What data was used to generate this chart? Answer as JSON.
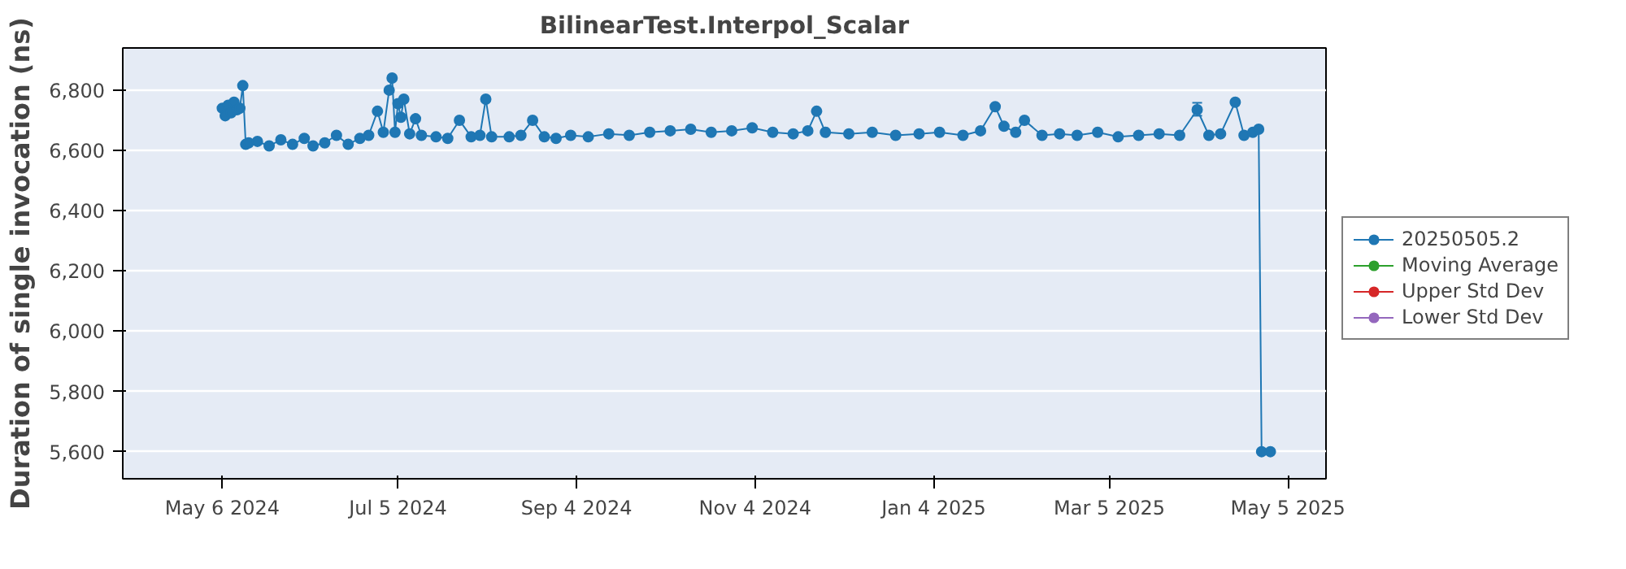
{
  "chart_data": {
    "type": "line",
    "title": "BilinearTest.Interpol_Scalar",
    "ylabel": "Duration of single invocation (ns)",
    "x": [
      "2024-05-06",
      "2024-05-07",
      "2024-05-08",
      "2024-05-09",
      "2024-05-10",
      "2024-05-11",
      "2024-05-12",
      "2024-05-13",
      "2024-05-14",
      "2024-05-15",
      "2024-05-18",
      "2024-05-22",
      "2024-05-26",
      "2024-05-30",
      "2024-06-03",
      "2024-06-06",
      "2024-06-10",
      "2024-06-14",
      "2024-06-18",
      "2024-06-22",
      "2024-06-25",
      "2024-06-28",
      "2024-06-30",
      "2024-07-02",
      "2024-07-03",
      "2024-07-04",
      "2024-07-05",
      "2024-07-06",
      "2024-07-07",
      "2024-07-09",
      "2024-07-11",
      "2024-07-13",
      "2024-07-18",
      "2024-07-22",
      "2024-07-26",
      "2024-07-30",
      "2024-08-02",
      "2024-08-04",
      "2024-08-06",
      "2024-08-12",
      "2024-08-16",
      "2024-08-20",
      "2024-08-24",
      "2024-08-28",
      "2024-09-02",
      "2024-09-08",
      "2024-09-15",
      "2024-09-22",
      "2024-09-29",
      "2024-10-06",
      "2024-10-13",
      "2024-10-20",
      "2024-10-27",
      "2024-11-03",
      "2024-11-10",
      "2024-11-17",
      "2024-11-22",
      "2024-11-25",
      "2024-11-28",
      "2024-12-06",
      "2024-12-14",
      "2024-12-22",
      "2024-12-30",
      "2025-01-06",
      "2025-01-14",
      "2025-01-20",
      "2025-01-25",
      "2025-01-28",
      "2025-02-01",
      "2025-02-04",
      "2025-02-10",
      "2025-02-16",
      "2025-02-22",
      "2025-03-01",
      "2025-03-08",
      "2025-03-15",
      "2025-03-22",
      "2025-03-29",
      "2025-04-04",
      "2025-04-08",
      "2025-04-12",
      "2025-04-17",
      "2025-04-20",
      "2025-04-23",
      "2025-04-25",
      "2025-04-26",
      "2025-04-29"
    ],
    "xlim": [
      "2024-04-02",
      "2025-05-18"
    ],
    "xticks": [
      {
        "value": "2024-05-06",
        "label": "May 6 2024"
      },
      {
        "value": "2024-07-05",
        "label": "Jul 5 2024"
      },
      {
        "value": "2024-09-04",
        "label": "Sep 4 2024"
      },
      {
        "value": "2024-11-04",
        "label": "Nov 4 2024"
      },
      {
        "value": "2025-01-04",
        "label": "Jan 4 2025"
      },
      {
        "value": "2025-03-05",
        "label": "Mar 5 2025"
      },
      {
        "value": "2025-05-05",
        "label": "May 5 2025"
      }
    ],
    "ylim": [
      5510,
      6940
    ],
    "yticks": [
      {
        "value": 5600,
        "label": "5,600"
      },
      {
        "value": 5800,
        "label": "5,800"
      },
      {
        "value": 6000,
        "label": "6,000"
      },
      {
        "value": 6200,
        "label": "6,200"
      },
      {
        "value": 6400,
        "label": "6,400"
      },
      {
        "value": 6600,
        "label": "6,600"
      },
      {
        "value": 6800,
        "label": "6,800"
      }
    ],
    "grid": true,
    "legend": "right",
    "marker": "circle",
    "series": [
      {
        "name": "20250505.2",
        "color": "#1f77b4",
        "values": [
          6740,
          6715,
          6750,
          6725,
          6760,
          6735,
          6740,
          6815,
          6620,
          6625,
          6630,
          6615,
          6635,
          6620,
          6640,
          6615,
          6625,
          6650,
          6620,
          6640,
          6650,
          6730,
          6660,
          6800,
          6840,
          6660,
          6755,
          6710,
          6770,
          6655,
          6705,
          6650,
          6645,
          6640,
          6700,
          6645,
          6650,
          6770,
          6645,
          6645,
          6650,
          6700,
          6645,
          6640,
          6650,
          6645,
          6655,
          6650,
          6660,
          6665,
          6670,
          6660,
          6665,
          6675,
          6660,
          6655,
          6665,
          6730,
          6660,
          6655,
          6660,
          6650,
          6655,
          6660,
          6650,
          6665,
          6745,
          6680,
          6660,
          6700,
          6650,
          6655,
          6650,
          6660,
          6645,
          6650,
          6655,
          6650,
          6735,
          6650,
          6655,
          6760,
          6650,
          6660,
          6670,
          5600,
          5600
        ],
        "errors": [
          null,
          null,
          null,
          null,
          null,
          null,
          null,
          null,
          null,
          null,
          null,
          null,
          null,
          null,
          null,
          null,
          null,
          null,
          null,
          null,
          null,
          null,
          null,
          null,
          null,
          null,
          null,
          null,
          null,
          null,
          null,
          null,
          null,
          null,
          null,
          null,
          null,
          null,
          null,
          null,
          null,
          null,
          null,
          null,
          null,
          null,
          null,
          null,
          null,
          null,
          null,
          null,
          null,
          null,
          null,
          null,
          null,
          null,
          null,
          null,
          null,
          null,
          null,
          null,
          null,
          null,
          null,
          null,
          null,
          null,
          null,
          null,
          null,
          null,
          null,
          null,
          null,
          null,
          [
            6715,
            6758
          ],
          null,
          null,
          null,
          null,
          null,
          null,
          null,
          null
        ]
      },
      {
        "name": "Moving Average",
        "color": "#2ca02c",
        "values": [
          null,
          null,
          null,
          null,
          null,
          null,
          null,
          null,
          null,
          null,
          null,
          null,
          null,
          null,
          null,
          null,
          null,
          null,
          null,
          null,
          null,
          null,
          null,
          null,
          null,
          null,
          null,
          null,
          null,
          null,
          null,
          null,
          null,
          null,
          null,
          null,
          null,
          null,
          null,
          null,
          null,
          null,
          null,
          null,
          null,
          null,
          null,
          null,
          null,
          null,
          null,
          null,
          null,
          null,
          null,
          null,
          null,
          null,
          null,
          null,
          null,
          null,
          null,
          null,
          null,
          null,
          null,
          null,
          null,
          null,
          null,
          null,
          null,
          null,
          null,
          null,
          null,
          null,
          null,
          null,
          null,
          null,
          null,
          null,
          null,
          null,
          null
        ]
      },
      {
        "name": "Upper Std Dev",
        "color": "#d62728",
        "values": [
          null,
          null,
          null,
          null,
          null,
          null,
          null,
          null,
          null,
          null,
          null,
          null,
          null,
          null,
          null,
          null,
          null,
          null,
          null,
          null,
          null,
          null,
          null,
          null,
          null,
          null,
          null,
          null,
          null,
          null,
          null,
          null,
          null,
          null,
          null,
          null,
          null,
          null,
          null,
          null,
          null,
          null,
          null,
          null,
          null,
          null,
          null,
          null,
          null,
          null,
          null,
          null,
          null,
          null,
          null,
          null,
          null,
          null,
          null,
          null,
          null,
          null,
          null,
          null,
          null,
          null,
          null,
          null,
          null,
          null,
          null,
          null,
          null,
          null,
          null,
          null,
          null,
          null,
          null,
          null,
          null,
          null,
          null,
          null,
          null,
          null,
          null
        ]
      },
      {
        "name": "Lower Std Dev",
        "color": "#9467bd",
        "values": [
          null,
          null,
          null,
          null,
          null,
          null,
          null,
          null,
          null,
          null,
          null,
          null,
          null,
          null,
          null,
          null,
          null,
          null,
          null,
          null,
          null,
          null,
          null,
          null,
          null,
          null,
          null,
          null,
          null,
          null,
          null,
          null,
          null,
          null,
          null,
          null,
          null,
          null,
          null,
          null,
          null,
          null,
          null,
          null,
          null,
          null,
          null,
          null,
          null,
          null,
          null,
          null,
          null,
          null,
          null,
          null,
          null,
          null,
          null,
          null,
          null,
          null,
          null,
          null,
          null,
          null,
          null,
          null,
          null,
          null,
          null,
          null,
          null,
          null,
          null,
          null,
          null,
          null,
          null,
          null,
          null,
          null,
          null,
          null,
          null,
          null,
          null
        ]
      }
    ]
  }
}
